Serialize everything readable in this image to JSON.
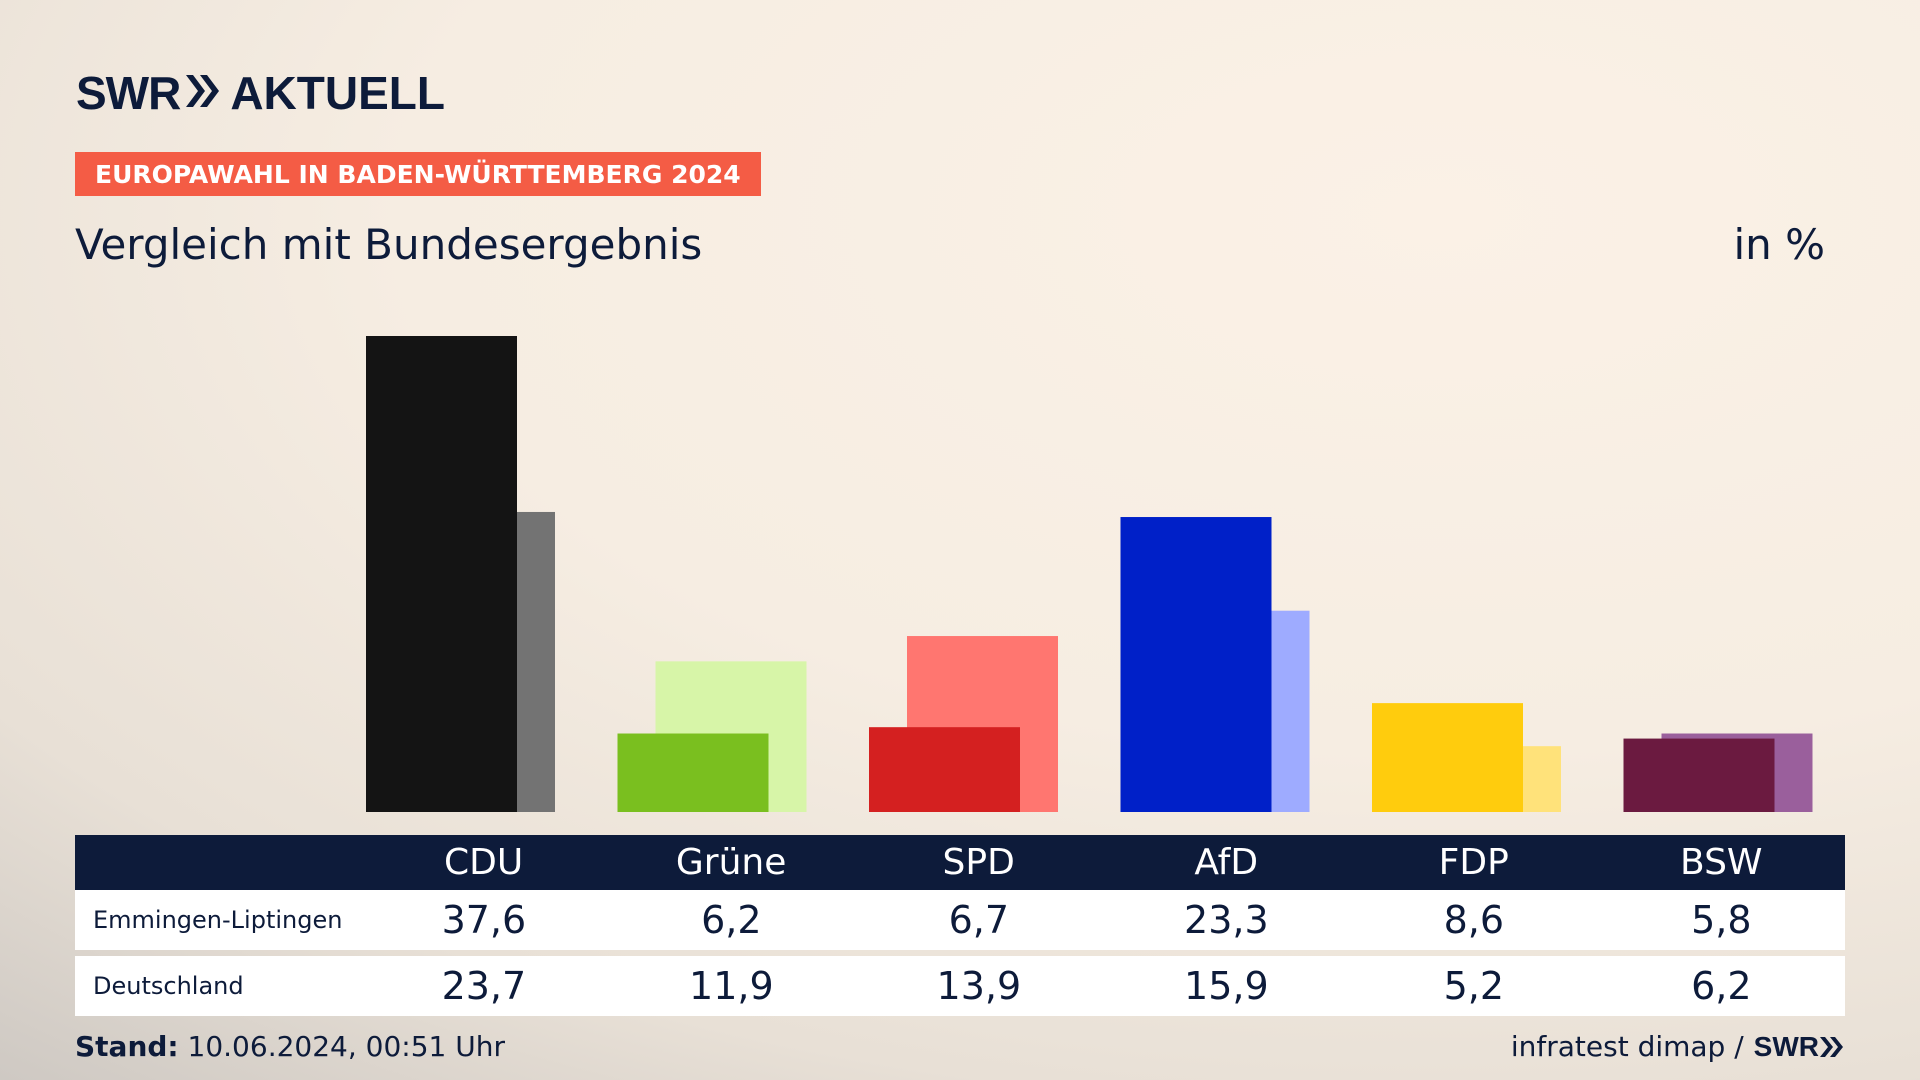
{
  "brand": {
    "name": "SWR",
    "product": "AKTUELL"
  },
  "tag": "EUROPAWAHL IN BADEN-WÜRTTEMBERG 2024",
  "subtitle": "Vergleich mit Bundesergebnis",
  "unit": "in %",
  "table": {
    "rows": [
      {
        "label": "Emmingen-Liptingen",
        "values": [
          "37,6",
          "6,2",
          "6,7",
          "23,3",
          "8,6",
          "5,8"
        ]
      },
      {
        "label": "Deutschland",
        "values": [
          "23,7",
          "11,9",
          "13,9",
          "15,9",
          "5,2",
          "6,2"
        ]
      }
    ]
  },
  "footer": {
    "stand_label": "Stand:",
    "stand_value": "10.06.2024, 00:51 Uhr",
    "source": "infratest dimap /",
    "source_brand": "SWR"
  },
  "colors": {
    "accent_tag": "#f45c45",
    "navy": "#0d1b3a",
    "parties": {
      "CDU": [
        "#141414",
        "#737373"
      ],
      "Grüne": [
        "#7abf1f",
        "#d7f5a8"
      ],
      "SPD": [
        "#d42020",
        "#ff7670"
      ],
      "AfD": [
        "#0020c8",
        "#9eabff"
      ],
      "FDP": [
        "#ffcc0d",
        "#ffe27a"
      ],
      "BSW": [
        "#6b1a40",
        "#9a5f9c"
      ]
    }
  },
  "chart_data": {
    "type": "bar",
    "categories": [
      "CDU",
      "Grüne",
      "SPD",
      "AfD",
      "FDP",
      "BSW"
    ],
    "series": [
      {
        "name": "Emmingen-Liptingen",
        "values": [
          37.6,
          6.2,
          6.7,
          23.3,
          8.6,
          5.8
        ]
      },
      {
        "name": "Deutschland",
        "values": [
          23.7,
          11.9,
          13.9,
          15.9,
          5.2,
          6.2
        ]
      }
    ],
    "title": "Vergleich mit Bundesergebnis",
    "xlabel": "",
    "ylabel": "in %",
    "ylim": [
      0,
      37.6
    ],
    "grid": false
  }
}
